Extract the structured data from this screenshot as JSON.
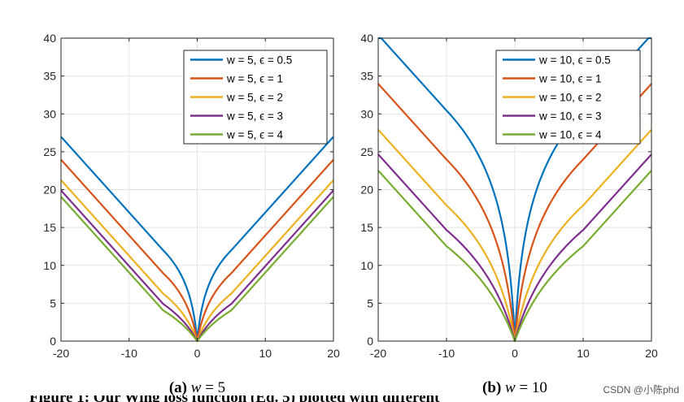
{
  "chart_data": [
    {
      "type": "line",
      "caption_prefix": "(a) ",
      "caption_var": "w",
      "caption_rest": " = 5",
      "xlim": [
        -20,
        20
      ],
      "ylim": [
        0,
        40
      ],
      "xticks": [
        "-20",
        "-10",
        "0",
        "10",
        "20"
      ],
      "yticks": [
        "0",
        "5",
        "10",
        "15",
        "20",
        "25",
        "30",
        "35",
        "40"
      ],
      "grid": true,
      "legend_position": "top-right",
      "w": 5,
      "series": [
        {
          "name": "w = 5, ϵ = 0.5",
          "epsilon": 0.5,
          "color": "#0072BD"
        },
        {
          "name": "w = 5, ϵ = 1",
          "epsilon": 1,
          "color": "#D95319"
        },
        {
          "name": "w = 5, ϵ = 2",
          "epsilon": 2,
          "color": "#EDB120"
        },
        {
          "name": "w = 5, ϵ = 3",
          "epsilon": 3,
          "color": "#7E2F8E"
        },
        {
          "name": "w = 5, ϵ = 4",
          "epsilon": 4,
          "color": "#77AC30"
        }
      ]
    },
    {
      "type": "line",
      "caption_prefix": "(b) ",
      "caption_var": "w",
      "caption_rest": " = 10",
      "xlim": [
        -20,
        20
      ],
      "ylim": [
        0,
        40
      ],
      "xticks": [
        "-20",
        "-10",
        "0",
        "10",
        "20"
      ],
      "yticks": [
        "0",
        "5",
        "10",
        "15",
        "20",
        "25",
        "30",
        "35",
        "40"
      ],
      "grid": true,
      "legend_position": "top-right",
      "w": 10,
      "series": [
        {
          "name": "w = 10, ϵ = 0.5",
          "epsilon": 0.5,
          "color": "#0072BD"
        },
        {
          "name": "w = 10, ϵ = 1",
          "epsilon": 1,
          "color": "#D95319"
        },
        {
          "name": "w = 10, ϵ = 2",
          "epsilon": 2,
          "color": "#EDB120"
        },
        {
          "name": "w = 10, ϵ = 3",
          "epsilon": 3,
          "color": "#7E2F8E"
        },
        {
          "name": "w = 10, ϵ = 4",
          "epsilon": 4,
          "color": "#77AC30"
        }
      ]
    }
  ],
  "watermark": "CSDN @小陈phd",
  "cutoff_text": "Figure 1: Our Wing loss function (Eq. 5) plotted with different"
}
